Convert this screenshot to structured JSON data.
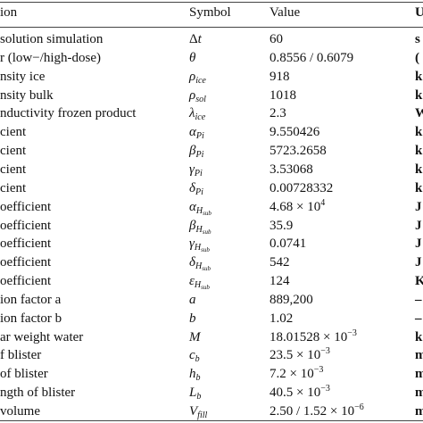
{
  "header": {
    "description": "ion",
    "symbol": "Symbol",
    "value": "Value",
    "unit": "U"
  },
  "rows": [
    {
      "desc": "solution simulation",
      "sym": "Δ",
      "sym2": "t",
      "sub": "",
      "subsub": "",
      "value": "60",
      "exp": "",
      "unit": "s"
    },
    {
      "desc": "r (low−/high-dose)",
      "sym": "",
      "sym2": "θ",
      "sub": "",
      "subsub": "",
      "value": "0.8556 / 0.6079",
      "exp": "",
      "unit": "("
    },
    {
      "desc": "nsity ice",
      "sym": "",
      "sym2": "ρ",
      "sub": "ice",
      "subsub": "",
      "value": "918",
      "exp": "",
      "unit": "k"
    },
    {
      "desc": "nsity bulk",
      "sym": "",
      "sym2": "ρ",
      "sub": "sol",
      "subsub": "",
      "value": "1018",
      "exp": "",
      "unit": "k"
    },
    {
      "desc": "nductivity frozen product",
      "sym": "",
      "sym2": "λ",
      "sub": "ice",
      "subsub": "",
      "value": "2.3",
      "exp": "",
      "unit": "W"
    },
    {
      "desc": "cient",
      "sym": "",
      "sym2": "α",
      "sub": "Pi",
      "subsub": "",
      "value": "9.550426",
      "exp": "",
      "unit": "k"
    },
    {
      "desc": "cient",
      "sym": "",
      "sym2": "β",
      "sub": "Pi",
      "subsub": "",
      "value": "5723.2658",
      "exp": "",
      "unit": "k"
    },
    {
      "desc": "cient",
      "sym": "",
      "sym2": "γ",
      "sub": "Pi",
      "subsub": "",
      "value": "3.53068",
      "exp": "",
      "unit": "k"
    },
    {
      "desc": "cient",
      "sym": "",
      "sym2": "δ",
      "sub": "Pi",
      "subsub": "",
      "value": "0.00728332",
      "exp": "",
      "unit": "k"
    },
    {
      "desc": "oefficient",
      "sym": "",
      "sym2": "α",
      "sub": "H",
      "subsub": "sub",
      "value": "4.68 × 10",
      "exp": "4",
      "unit": "J"
    },
    {
      "desc": "oefficient",
      "sym": "",
      "sym2": "β",
      "sub": "H",
      "subsub": "sub",
      "value": "35.9",
      "exp": "",
      "unit": "J"
    },
    {
      "desc": "oefficient",
      "sym": "",
      "sym2": "γ",
      "sub": "H",
      "subsub": "sub",
      "value": "0.0741",
      "exp": "",
      "unit": "J"
    },
    {
      "desc": "oefficient",
      "sym": "",
      "sym2": "δ",
      "sub": "H",
      "subsub": "sub",
      "value": "542",
      "exp": "",
      "unit": "J"
    },
    {
      "desc": "oefficient",
      "sym": "",
      "sym2": "ε",
      "sub": "H",
      "subsub": "sub",
      "value": "124",
      "exp": "",
      "unit": "K"
    },
    {
      "desc": "ion factor a",
      "sym": "",
      "sym2": "a",
      "sub": "",
      "subsub": "",
      "value": "889,200",
      "exp": "",
      "unit": "–"
    },
    {
      "desc": "ion factor b",
      "sym": "",
      "sym2": "b",
      "sub": "",
      "subsub": "",
      "value": "1.02",
      "exp": "",
      "unit": "–"
    },
    {
      "desc": "ar weight water",
      "sym": "",
      "sym2": "M",
      "sub": "",
      "subsub": "",
      "value": "18.01528 × 10",
      "exp": "−3",
      "unit": "k"
    },
    {
      "desc": "f blister",
      "sym": "",
      "sym2": "c",
      "sub": "b",
      "subsub": "",
      "value": "23.5 × 10",
      "exp": "−3",
      "unit": "m"
    },
    {
      "desc": "of blister",
      "sym": "",
      "sym2": "h",
      "sub": "b",
      "subsub": "",
      "value": "7.2 × 10",
      "exp": "−3",
      "unit": "m"
    },
    {
      "desc": "ngth of blister",
      "sym": "",
      "sym2": "L",
      "sub": "b",
      "subsub": "",
      "value": "40.5 × 10",
      "exp": "−3",
      "unit": "m"
    },
    {
      "desc": "volume",
      "sym": "",
      "sym2": "V",
      "sub": "fill",
      "subsub": "",
      "value": "2.50 / 1.52 × 10",
      "exp": "−6",
      "unit": "m"
    }
  ]
}
